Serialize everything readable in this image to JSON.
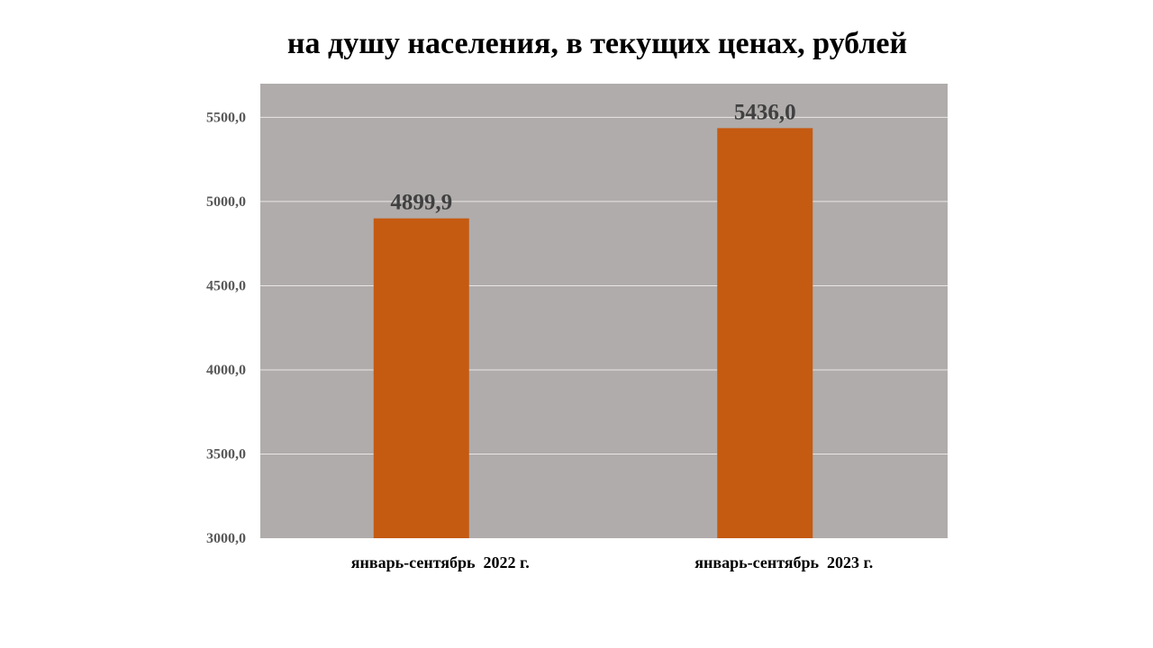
{
  "chart_data": {
    "type": "bar",
    "title": "на душу населения, в текущих ценах, рублей",
    "xlabel": "",
    "ylabel": "",
    "categories": [
      "январь-сентябрь  2022 г.",
      "январь-сентябрь  2023 г."
    ],
    "values": [
      4899.9,
      5436.0
    ],
    "value_labels": [
      "4899,9",
      "5436,0"
    ],
    "ylim": [
      3000,
      5700
    ],
    "yticks": [
      3000,
      3500,
      4000,
      4500,
      5000,
      5500
    ],
    "ytick_labels": [
      "3000,0",
      "3500,0",
      "4000,0",
      "4500,0",
      "5000,0",
      "5500,0"
    ],
    "grid": true,
    "legend": "none"
  },
  "colors": {
    "plot_background": "#b0acab",
    "bar": "#c55a11",
    "grid": "#e8e6e5",
    "tick_text": "#595959",
    "data_label_text": "#404040"
  }
}
